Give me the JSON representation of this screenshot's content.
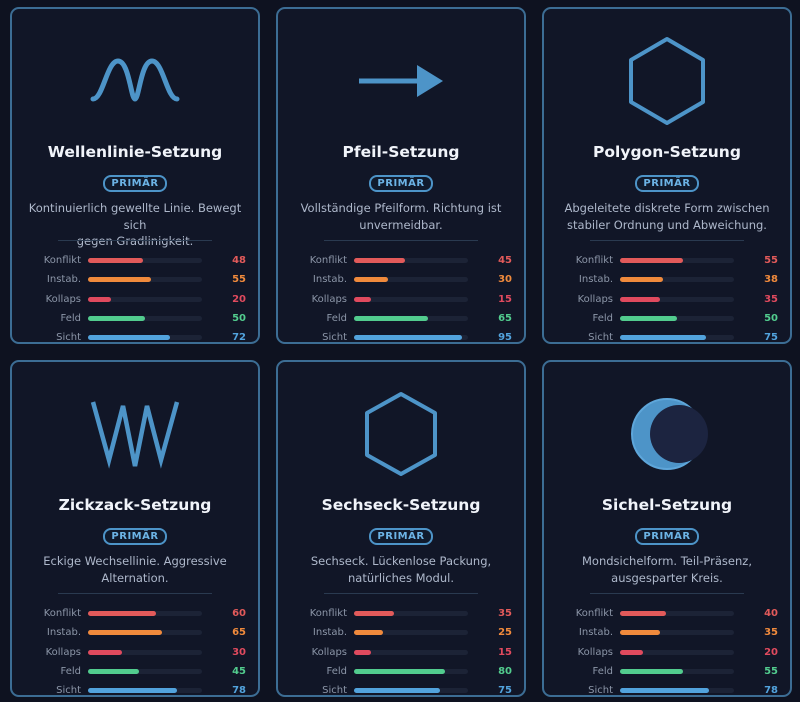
{
  "badge_label": "PRIMÄR",
  "colors": {
    "konflikt": "#e25a5a",
    "instab": "#f08a3c",
    "kollaps": "#e04a5e",
    "feld": "#52cc8e",
    "sicht": "#52a3dd",
    "icon_stroke": "#4d94c8",
    "card_border": "#3c6d94"
  },
  "cards": [
    {
      "icon": "wave-line-icon",
      "title": "Wellenlinie-Setzung",
      "desc_line1": "Kontinuierlich gewellte Linie. Bewegt sich",
      "desc_line2": "gegen Gradlinigkeit.",
      "stats": [
        {
          "label": "Konflikt",
          "value": 48
        },
        {
          "label": "Instab.",
          "value": 55
        },
        {
          "label": "Kollaps",
          "value": 20
        },
        {
          "label": "Feld",
          "value": 50
        },
        {
          "label": "Sicht",
          "value": 72
        }
      ]
    },
    {
      "icon": "arrow-right-icon",
      "title": "Pfeil-Setzung",
      "desc_line1": "Vollständige Pfeilform. Richtung ist",
      "desc_line2": "unvermeidbar.",
      "stats": [
        {
          "label": "Konflikt",
          "value": 45
        },
        {
          "label": "Instab.",
          "value": 30
        },
        {
          "label": "Kollaps",
          "value": 15
        },
        {
          "label": "Feld",
          "value": 65
        },
        {
          "label": "Sicht",
          "value": 95
        }
      ]
    },
    {
      "icon": "hexagon-outline-icon",
      "title": "Polygon-Setzung",
      "desc_line1": "Abgeleitete diskrete Form zwischen",
      "desc_line2": "stabiler Ordnung und Abweichung.",
      "stats": [
        {
          "label": "Konflikt",
          "value": 55
        },
        {
          "label": "Instab.",
          "value": 38
        },
        {
          "label": "Kollaps",
          "value": 35
        },
        {
          "label": "Feld",
          "value": 50
        },
        {
          "label": "Sicht",
          "value": 75
        }
      ]
    },
    {
      "icon": "zigzag-line-icon",
      "title": "Zickzack-Setzung",
      "desc_line1": "Eckige Wechsellinie. Aggressive",
      "desc_line2": "Alternation.",
      "stats": [
        {
          "label": "Konflikt",
          "value": 60
        },
        {
          "label": "Instab.",
          "value": 65
        },
        {
          "label": "Kollaps",
          "value": 30
        },
        {
          "label": "Feld",
          "value": 45
        },
        {
          "label": "Sicht",
          "value": 78
        }
      ]
    },
    {
      "icon": "hexagon-flat-icon",
      "title": "Sechseck-Setzung",
      "desc_line1": "Sechseck. Lückenlose Packung,",
      "desc_line2": "natürliches Modul.",
      "stats": [
        {
          "label": "Konflikt",
          "value": 35
        },
        {
          "label": "Instab.",
          "value": 25
        },
        {
          "label": "Kollaps",
          "value": 15
        },
        {
          "label": "Feld",
          "value": 80
        },
        {
          "label": "Sicht",
          "value": 75
        }
      ]
    },
    {
      "icon": "crescent-moon-icon",
      "title": "Sichel-Setzung",
      "desc_line1": "Mondsichelform. Teil-Präsenz,",
      "desc_line2": "ausgesparter Kreis.",
      "stats": [
        {
          "label": "Konflikt",
          "value": 40
        },
        {
          "label": "Instab.",
          "value": 35
        },
        {
          "label": "Kollaps",
          "value": 20
        },
        {
          "label": "Feld",
          "value": 55
        },
        {
          "label": "Sicht",
          "value": 78
        }
      ]
    }
  ]
}
